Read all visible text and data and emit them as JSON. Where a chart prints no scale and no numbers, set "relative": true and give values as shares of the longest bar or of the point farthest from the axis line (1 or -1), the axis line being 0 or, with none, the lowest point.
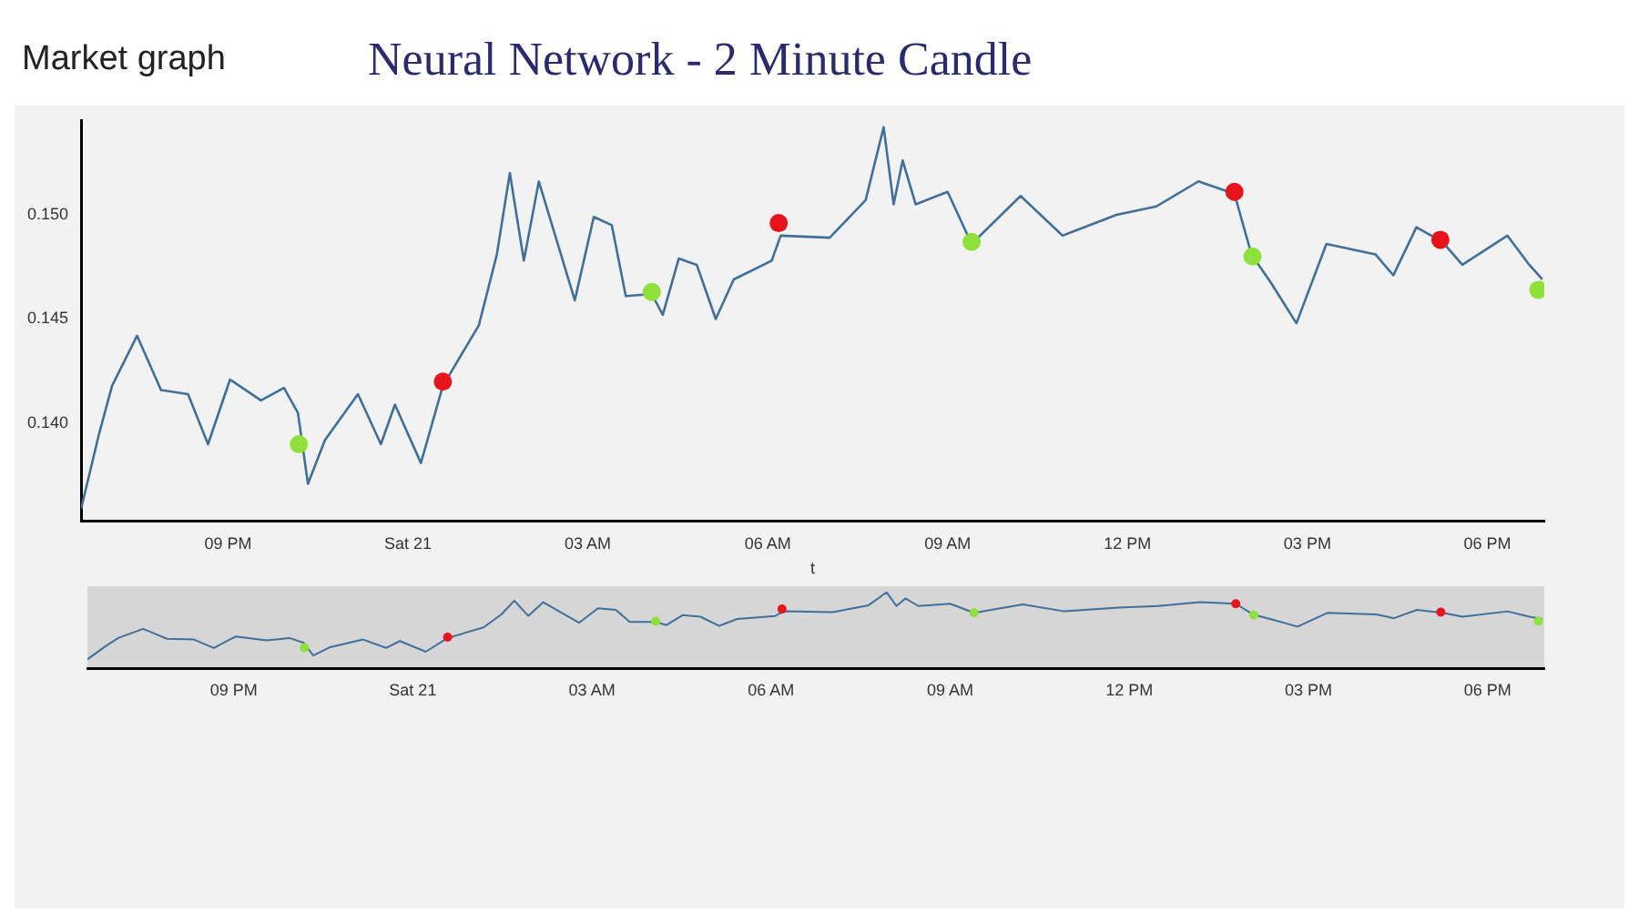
{
  "chart_data": [
    {
      "type": "line",
      "title": "Neural Network - 2 Minute Candle",
      "subtitle": "Market graph",
      "xlabel": "t",
      "x": [
        "--04-20T18:33",
        "--04-20T18:51",
        "--04-20T19:04",
        "--04-20T19:29",
        "--04-20T19:40",
        "--04-20T19:53",
        "--04-20T20:20",
        "--04-20T20:40",
        "--04-20T21:02",
        "--04-20T21:33",
        "--04-20T21:56",
        "--04-20T22:10",
        "--04-20T22:20",
        "--04-20T22:37",
        "--04-20T23:10",
        "--04-20T23:33",
        "--04-20T23:47",
        "--04-21T00:13",
        "--04-21T00:35",
        "--04-21T01:11",
        "--04-21T01:29",
        "--04-21T01:42",
        "--04-21T01:56",
        "--04-21T02:11",
        "--04-21T02:47",
        "--04-21T03:06",
        "--04-21T03:24",
        "--04-21T03:38",
        "--04-21T04:04",
        "--04-21T04:15",
        "--04-21T04:31",
        "--04-21T04:49",
        "--04-21T05:08",
        "--04-21T05:26",
        "--04-21T06:04",
        "--04-21T06:13",
        "--04-21T07:02",
        "--04-21T07:38",
        "--04-21T07:56",
        "--04-21T08:06",
        "--04-21T08:15",
        "--04-21T08:28",
        "--04-21T09:00",
        "--04-21T09:24",
        "--04-21T10:13",
        "--04-21T10:55",
        "--04-21T11:49",
        "--04-21T12:29",
        "--04-21T13:11",
        "--04-21T13:47",
        "--04-21T14:04",
        "--04-21T14:24",
        "--04-21T14:49",
        "--04-21T15:19",
        "--04-21T16:08",
        "--04-21T16:26",
        "--04-21T16:49",
        "--04-21T17:15",
        "--04-21T17:35",
        "--04-21T18:20",
        "--04-21T18:42",
        "--04-21T18:55"
      ],
      "xlim": [
        "--04-20T18:33",
        "--04-21T18:57"
      ],
      "ylim": [
        0.1353,
        0.1545
      ],
      "xticks": [
        {
          "value": "--04-20T21:00",
          "label": "09 PM"
        },
        {
          "value": "--04-21T00:00",
          "label": "Sat 21"
        },
        {
          "value": "--04-21T03:00",
          "label": "03 AM"
        },
        {
          "value": "--04-21T06:00",
          "label": "06 AM"
        },
        {
          "value": "--04-21T09:00",
          "label": "09 AM"
        },
        {
          "value": "--04-21T12:00",
          "label": "12 PM"
        },
        {
          "value": "--04-21T15:00",
          "label": "03 PM"
        },
        {
          "value": "--04-21T18:00",
          "label": "06 PM"
        }
      ],
      "yticks": [
        {
          "value": 0.14,
          "label": "0.140"
        },
        0.145,
        {
          "value": 0.15,
          "label": "0.150"
        }
      ],
      "series": [
        {
          "type": "line",
          "marker": "none",
          "color": "#3f6f9a",
          "values": [
            0.1359,
            0.1395,
            0.1418,
            0.1442,
            0.143,
            0.1416,
            0.1414,
            0.139,
            0.1421,
            0.1411,
            0.1417,
            0.1405,
            0.1371,
            0.1392,
            0.1414,
            0.139,
            0.1409,
            0.1381,
            0.1418,
            0.1447,
            0.1481,
            0.152,
            0.1478,
            0.1516,
            0.1459,
            0.1499,
            0.1495,
            0.1461,
            0.1462,
            0.1452,
            0.1479,
            0.1476,
            0.145,
            0.1469,
            0.1478,
            0.149,
            0.1489,
            0.1507,
            0.1542,
            0.1505,
            0.1526,
            0.1505,
            0.1511,
            0.1486,
            0.1509,
            0.149,
            0.15,
            0.1504,
            0.1516,
            0.151,
            0.1481,
            0.1467,
            0.1448,
            0.1486,
            0.1481,
            0.1471,
            0.1494,
            0.1487,
            0.1476,
            0.149,
            0.1476,
            0.1469
          ]
        },
        {
          "type": "scatter",
          "marker": "circle",
          "color": "#8ee03a",
          "x": [
            "--04-20T22:11",
            "--04-21T04:04",
            "--04-21T09:24",
            "--04-21T14:05",
            "--04-21T18:51"
          ],
          "values": [
            0.139,
            0.1463,
            0.1487,
            0.148,
            0.1464
          ]
        },
        {
          "type": "scatter",
          "marker": "circle",
          "color": "#e8141c",
          "x": [
            "--04-21T00:35",
            "--04-21T06:11",
            "--04-21T13:47",
            "--04-21T17:13"
          ],
          "values": [
            0.142,
            0.1496,
            0.1511,
            0.1488
          ]
        }
      ]
    },
    {
      "type": "line",
      "tick_labels": "x",
      "relative": true,
      "x": [
        "--04-20T18:33",
        "--04-20T18:51",
        "--04-20T19:04",
        "--04-20T19:29",
        "--04-20T19:40",
        "--04-20T19:53",
        "--04-20T20:20",
        "--04-20T20:40",
        "--04-20T21:02",
        "--04-20T21:33",
        "--04-20T21:56",
        "--04-20T22:10",
        "--04-20T22:20",
        "--04-20T22:37",
        "--04-20T23:10",
        "--04-20T23:33",
        "--04-20T23:47",
        "--04-21T00:13",
        "--04-21T00:35",
        "--04-21T01:11",
        "--04-21T01:29",
        "--04-21T01:42",
        "--04-21T01:56",
        "--04-21T02:11",
        "--04-21T02:47",
        "--04-21T03:06",
        "--04-21T03:24",
        "--04-21T03:38",
        "--04-21T04:04",
        "--04-21T04:15",
        "--04-21T04:31",
        "--04-21T04:49",
        "--04-21T05:08",
        "--04-21T05:26",
        "--04-21T06:04",
        "--04-21T06:13",
        "--04-21T07:02",
        "--04-21T07:38",
        "--04-21T07:56",
        "--04-21T08:06",
        "--04-21T08:15",
        "--04-21T08:28",
        "--04-21T09:00",
        "--04-21T09:24",
        "--04-21T10:13",
        "--04-21T10:55",
        "--04-21T11:49",
        "--04-21T12:29",
        "--04-21T13:11",
        "--04-21T13:47",
        "--04-21T14:04",
        "--04-21T14:24",
        "--04-21T14:49",
        "--04-21T15:19",
        "--04-21T16:08",
        "--04-21T16:26",
        "--04-21T16:49",
        "--04-21T17:15",
        "--04-21T17:35",
        "--04-21T18:20",
        "--04-21T18:42",
        "--04-21T18:55"
      ],
      "xlim": [
        "--04-20T18:33",
        "--04-21T18:57"
      ],
      "xticks": [
        {
          "value": "--04-20T21:00",
          "label": "09 PM"
        },
        {
          "value": "--04-21T00:00",
          "label": "Sat 21"
        },
        {
          "value": "--04-21T03:00",
          "label": "03 AM"
        },
        {
          "value": "--04-21T06:00",
          "label": "06 AM"
        },
        {
          "value": "--04-21T09:00",
          "label": "09 AM"
        },
        {
          "value": "--04-21T12:00",
          "label": "12 PM"
        },
        {
          "value": "--04-21T15:00",
          "label": "03 PM"
        },
        {
          "value": "--04-21T18:00",
          "label": "06 PM"
        }
      ],
      "series": [
        {
          "type": "line",
          "marker": "none",
          "color": "#3f6f9a",
          "values": [
            0.12,
            0.29,
            0.4,
            0.52,
            0.46,
            0.39,
            0.38,
            0.27,
            0.42,
            0.37,
            0.4,
            0.34,
            0.17,
            0.28,
            0.38,
            0.27,
            0.36,
            0.22,
            0.4,
            0.54,
            0.71,
            0.89,
            0.69,
            0.87,
            0.6,
            0.79,
            0.77,
            0.61,
            0.61,
            0.57,
            0.7,
            0.68,
            0.56,
            0.65,
            0.69,
            0.75,
            0.74,
            0.83,
            1,
            0.82,
            0.92,
            0.82,
            0.85,
            0.73,
            0.84,
            0.75,
            0.8,
            0.82,
            0.87,
            0.85,
            0.71,
            0.64,
            0.55,
            0.73,
            0.71,
            0.66,
            0.77,
            0.73,
            0.68,
            0.75,
            0.68,
            0.65
          ]
        },
        {
          "type": "scatter",
          "marker": "circle",
          "color": "#8ee03a",
          "x": [
            "--04-20T22:11",
            "--04-21T04:04",
            "--04-21T09:24",
            "--04-21T14:05",
            "--04-21T18:51"
          ],
          "values": [
            0.27,
            0.62,
            0.73,
            0.7,
            0.62
          ]
        },
        {
          "type": "scatter",
          "marker": "circle",
          "color": "#e8141c",
          "x": [
            "--04-21T00:35",
            "--04-21T06:11",
            "--04-21T13:47",
            "--04-21T17:13"
          ],
          "values": [
            0.41,
            0.78,
            0.85,
            0.74
          ]
        }
      ]
    }
  ]
}
